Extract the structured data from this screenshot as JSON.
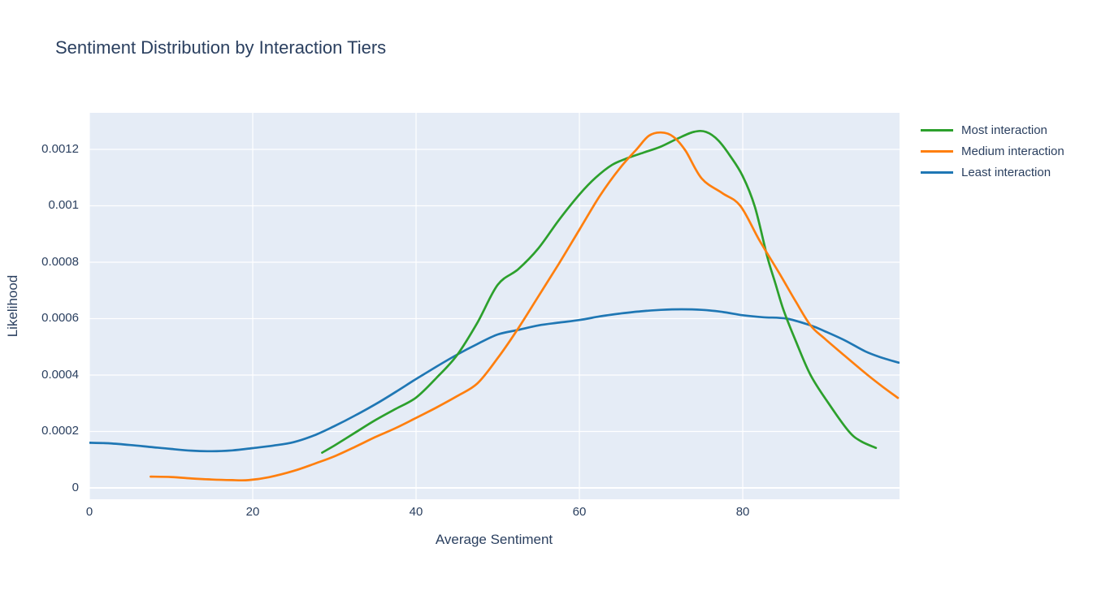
{
  "chart_data": {
    "type": "line",
    "title": "Sentiment Distribution by Interaction Tiers",
    "xlabel": "Average Sentiment",
    "ylabel": "Likelihood",
    "x_range": [
      0,
      99.2
    ],
    "y_range": [
      -4.03e-05,
      0.0013295
    ],
    "x_ticks": [
      0,
      20,
      40,
      60,
      80
    ],
    "x_tick_labels": [
      "0",
      "20",
      "40",
      "60",
      "80"
    ],
    "y_ticks": [
      0,
      0.0002,
      0.0004,
      0.0006,
      0.0008,
      0.001,
      0.0012
    ],
    "y_tick_labels": [
      "0",
      "0.0002",
      "0.0004",
      "0.0006",
      "0.0008",
      "0.001",
      "0.0012"
    ],
    "grid": true,
    "legend_position": "right",
    "colors": {
      "plot_background": "#e5ecf6",
      "grid": "#ffffff",
      "text": "#2a3f5f",
      "page_background": "#ffffff"
    },
    "series": [
      {
        "name": "Most interaction",
        "color": "#2ca02c",
        "points": [
          [
            28.5,
            0.000125
          ],
          [
            30,
            0.00015
          ],
          [
            32.5,
            0.000195
          ],
          [
            35,
            0.00024
          ],
          [
            37.5,
            0.00028
          ],
          [
            40,
            0.00032
          ],
          [
            42.5,
            0.00039
          ],
          [
            45,
            0.00047
          ],
          [
            47.5,
            0.000585
          ],
          [
            50,
            0.00072
          ],
          [
            52.5,
            0.000775
          ],
          [
            55,
            0.00085
          ],
          [
            57.5,
            0.00095
          ],
          [
            60,
            0.00104
          ],
          [
            62,
            0.0011
          ],
          [
            64,
            0.001145
          ],
          [
            66,
            0.00117
          ],
          [
            68,
            0.00119
          ],
          [
            70,
            0.00121
          ],
          [
            72,
            0.001238
          ],
          [
            74,
            0.001262
          ],
          [
            75.5,
            0.001262
          ],
          [
            77,
            0.001232
          ],
          [
            78.5,
            0.001175
          ],
          [
            80,
            0.001105
          ],
          [
            81.5,
            0.000995
          ],
          [
            83,
            0.00082
          ],
          [
            84,
            0.000725
          ],
          [
            85,
            0.00063
          ],
          [
            86.5,
            0.00052
          ],
          [
            88.3,
            0.0004
          ],
          [
            90.5,
            0.0003
          ],
          [
            93,
            0.0002
          ],
          [
            94.5,
            0.000165
          ],
          [
            96.3,
            0.000142
          ]
        ]
      },
      {
        "name": "Medium interaction",
        "color": "#ff7f0e",
        "points": [
          [
            7.5,
            4e-05
          ],
          [
            10,
            3.85e-05
          ],
          [
            12.5,
            3.35e-05
          ],
          [
            15,
            2.95e-05
          ],
          [
            17.5,
            2.75e-05
          ],
          [
            19.5,
            2.75e-05
          ],
          [
            22,
            3.8e-05
          ],
          [
            25,
            6e-05
          ],
          [
            27.5,
            8.5e-05
          ],
          [
            30,
            0.000112
          ],
          [
            32.5,
            0.000145
          ],
          [
            35,
            0.00018
          ],
          [
            37.5,
            0.000212
          ],
          [
            40,
            0.000248
          ],
          [
            42.5,
            0.000285
          ],
          [
            45,
            0.000325
          ],
          [
            47.5,
            0.00037
          ],
          [
            50,
            0.00046
          ],
          [
            52.5,
            0.000565
          ],
          [
            55,
            0.00068
          ],
          [
            57.5,
            0.000795
          ],
          [
            60,
            0.000915
          ],
          [
            62.5,
            0.001035
          ],
          [
            65,
            0.001135
          ],
          [
            67,
            0.0012
          ],
          [
            68.5,
            0.001248
          ],
          [
            70,
            0.00126
          ],
          [
            71.5,
            0.001245
          ],
          [
            73,
            0.001195
          ],
          [
            75,
            0.001096
          ],
          [
            77.5,
            0.001045
          ],
          [
            79.7,
            0.001
          ],
          [
            82,
            0.00088
          ],
          [
            84.7,
            0.00075
          ],
          [
            86.5,
            0.00066
          ],
          [
            88.3,
            0.000576
          ],
          [
            90,
            0.00053
          ],
          [
            92.5,
            0.000468
          ],
          [
            95.3,
            0.0004
          ],
          [
            97.2,
            0.000357
          ],
          [
            99,
            0.000319
          ]
        ]
      },
      {
        "name": "Least interaction",
        "color": "#1f77b4",
        "points": [
          [
            0,
            0.00016
          ],
          [
            2.5,
            0.000158
          ],
          [
            5,
            0.000152
          ],
          [
            7.5,
            0.000145
          ],
          [
            10,
            0.000138
          ],
          [
            12.5,
            0.000132
          ],
          [
            15,
            0.00013
          ],
          [
            17.5,
            0.000133
          ],
          [
            20,
            0.000141
          ],
          [
            22.5,
            0.00015
          ],
          [
            25,
            0.000162
          ],
          [
            27.5,
            0.000186
          ],
          [
            30,
            0.000219
          ],
          [
            32.5,
            0.000256
          ],
          [
            35,
            0.000296
          ],
          [
            37.5,
            0.00034
          ],
          [
            40,
            0.000386
          ],
          [
            42.5,
            0.00043
          ],
          [
            45,
            0.000472
          ],
          [
            47.5,
            0.00051
          ],
          [
            50,
            0.000544
          ],
          [
            52.5,
            0.00056
          ],
          [
            55,
            0.000576
          ],
          [
            57.5,
            0.000586
          ],
          [
            60,
            0.000595
          ],
          [
            62.5,
            0.000608
          ],
          [
            65,
            0.000618
          ],
          [
            67.5,
            0.000626
          ],
          [
            70,
            0.000631
          ],
          [
            72.5,
            0.000633
          ],
          [
            75,
            0.000631
          ],
          [
            77.5,
            0.000624
          ],
          [
            80,
            0.000612
          ],
          [
            82.5,
            0.000605
          ],
          [
            85.4,
            0.0006
          ],
          [
            88.3,
            0.000576
          ],
          [
            90,
            0.000556
          ],
          [
            92.5,
            0.000523
          ],
          [
            95,
            0.000484
          ],
          [
            97,
            0.000462
          ],
          [
            99.1,
            0.000444
          ]
        ]
      }
    ],
    "draw_order": [
      "Least interaction",
      "Most interaction",
      "Medium interaction"
    ],
    "line_width": 2.7
  }
}
